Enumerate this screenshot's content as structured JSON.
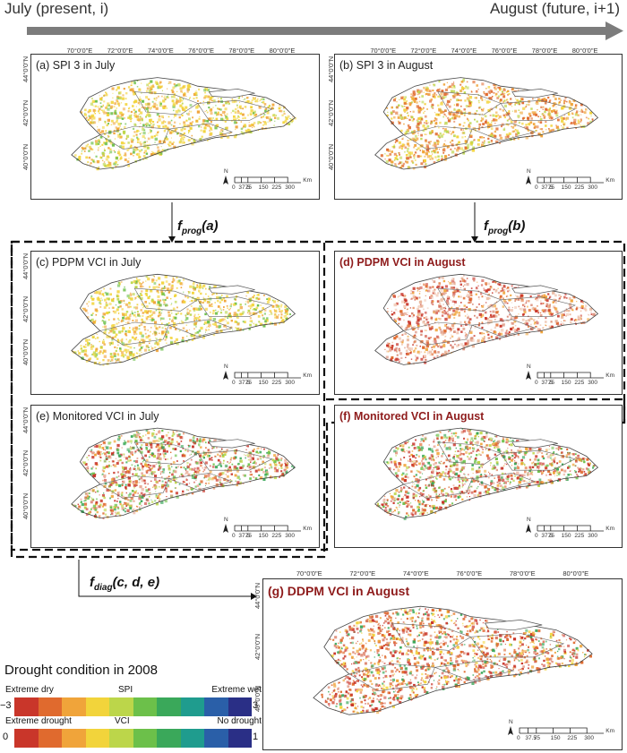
{
  "header": {
    "left": "July (present, i)",
    "right": "August (future, i+1)"
  },
  "longitudes": [
    "70°0'0\"E",
    "72°0'0\"E",
    "74°0'0\"E",
    "76°0'0\"E",
    "78°0'0\"E",
    "80°0'0\"E"
  ],
  "latitudes": [
    "44°0'0\"N",
    "42°0'0\"N",
    "40°0'0\"N"
  ],
  "panels": {
    "a": "(a) SPI 3 in July",
    "b": "(b) SPI 3 in August",
    "c": "(c) PDPM VCI in July",
    "d": "(d) PDPM VCI in August",
    "e": "(e) Monitored VCI in July",
    "f": "(f) Monitored VCI in August",
    "g": "(g) DDPM VCI in August"
  },
  "functions": {
    "prog_a": {
      "base": "f",
      "sub": "prog",
      "arg": "(a)"
    },
    "prog_b": {
      "base": "f",
      "sub": "prog",
      "arg": "(b)"
    },
    "diag": {
      "base": "f",
      "sub": "diag",
      "arg": "(c, d, e)"
    }
  },
  "scale": {
    "north": "N",
    "ticks": [
      "0",
      "37.5",
      "75",
      "150",
      "225",
      "300"
    ],
    "unit": "Km"
  },
  "legend": {
    "title": "Drought condition in 2008",
    "spi": {
      "left": "Extreme dry",
      "center": "SPI",
      "right": "Extreme wet",
      "min": "−3",
      "max": "3"
    },
    "vci": {
      "left": "Extreme drought",
      "center": "VCI",
      "right": "No drought",
      "min": "0",
      "max": "1"
    },
    "colors": [
      "#c9362a",
      "#e06a2e",
      "#f0a43a",
      "#f2d43b",
      "#bcd64a",
      "#6cc04a",
      "#3aa85a",
      "#1f9c8e",
      "#2a5fa8",
      "#2a2f86"
    ]
  }
}
